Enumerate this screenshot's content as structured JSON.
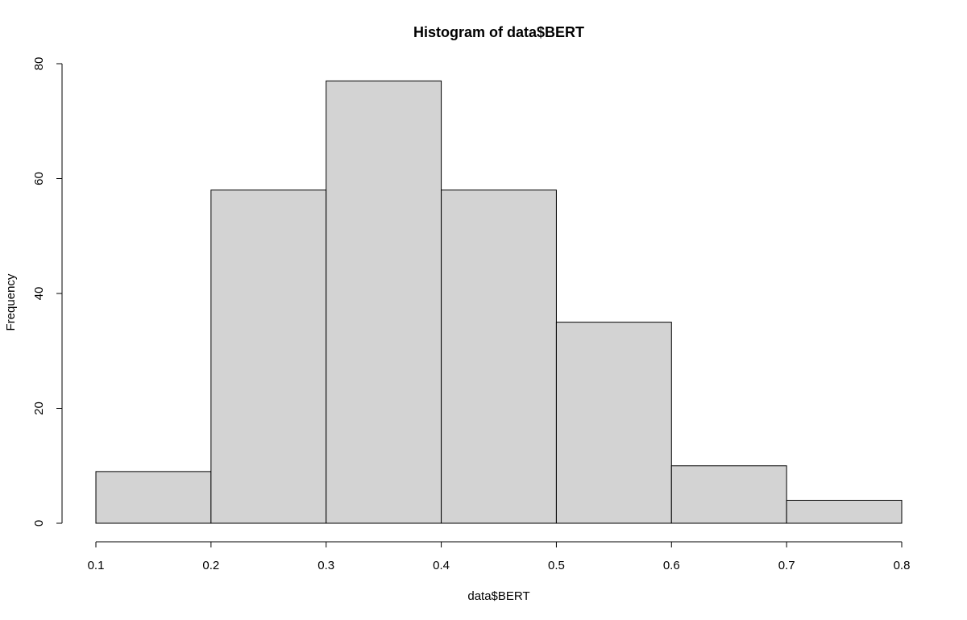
{
  "chart_data": {
    "type": "bar",
    "subtype": "histogram",
    "title": "Histogram of data$BERT",
    "xlabel": "data$BERT",
    "ylabel": "Frequency",
    "bins": [
      {
        "start": 0.1,
        "end": 0.2,
        "count": 9
      },
      {
        "start": 0.2,
        "end": 0.3,
        "count": 58
      },
      {
        "start": 0.3,
        "end": 0.4,
        "count": 77
      },
      {
        "start": 0.4,
        "end": 0.5,
        "count": 58
      },
      {
        "start": 0.5,
        "end": 0.6,
        "count": 35
      },
      {
        "start": 0.6,
        "end": 0.7,
        "count": 10
      },
      {
        "start": 0.7,
        "end": 0.8,
        "count": 4
      }
    ],
    "x_ticks": [
      "0.1",
      "0.2",
      "0.3",
      "0.4",
      "0.5",
      "0.6",
      "0.7",
      "0.8"
    ],
    "y_ticks": [
      "0",
      "20",
      "40",
      "60",
      "80"
    ],
    "xlim": [
      0.1,
      0.8
    ],
    "ylim": [
      0,
      80
    ],
    "grid": false,
    "colors": {
      "bar_fill": "#d3d3d3",
      "bar_stroke": "#000000",
      "background": "#ffffff"
    }
  }
}
